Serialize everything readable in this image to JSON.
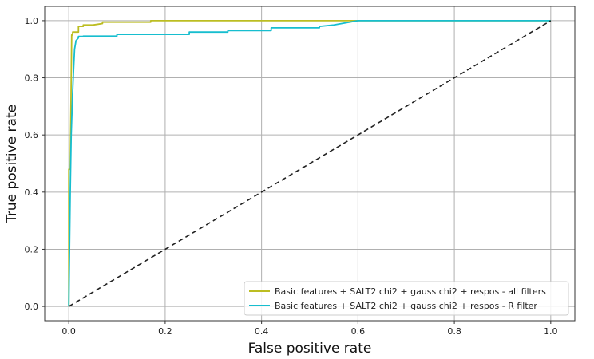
{
  "chart_data": {
    "type": "line",
    "xlabel": "False positive rate",
    "ylabel": "True positive rate",
    "xlim": [
      -0.05,
      1.05
    ],
    "ylim": [
      -0.05,
      1.05
    ],
    "xticks": [
      "0.0",
      "0.2",
      "0.4",
      "0.6",
      "0.8",
      "1.0"
    ],
    "yticks": [
      "0.0",
      "0.2",
      "0.4",
      "0.6",
      "0.8",
      "1.0"
    ],
    "grid": true,
    "legend_position": "lower-right",
    "series": [
      {
        "name": "Basic features + SALT2 chi2 + gauss chi2 + respos - all filters",
        "color": "#bcbd22",
        "x": [
          0.0,
          0.0,
          0.003,
          0.006,
          0.008,
          0.008,
          0.02,
          0.02,
          0.03,
          0.03,
          0.05,
          0.07,
          0.07,
          0.17,
          0.17,
          0.6,
          1.0
        ],
        "y": [
          0.0,
          0.48,
          0.48,
          0.95,
          0.95,
          0.96,
          0.96,
          0.98,
          0.98,
          0.985,
          0.985,
          0.99,
          0.995,
          0.995,
          1.0,
          1.0,
          1.0
        ]
      },
      {
        "name": "Basic features + SALT2 chi2 + gauss chi2 + respos - R filter",
        "color": "#17becf",
        "x": [
          0.0,
          0.003,
          0.005,
          0.008,
          0.01,
          0.012,
          0.015,
          0.02,
          0.02,
          0.03,
          0.03,
          0.1,
          0.1,
          0.25,
          0.25,
          0.33,
          0.33,
          0.42,
          0.42,
          0.52,
          0.52,
          0.55,
          0.6,
          1.0
        ],
        "y": [
          0.0,
          0.4,
          0.6,
          0.75,
          0.83,
          0.9,
          0.93,
          0.94,
          0.945,
          0.945,
          0.946,
          0.946,
          0.952,
          0.952,
          0.96,
          0.96,
          0.965,
          0.965,
          0.975,
          0.975,
          0.98,
          0.985,
          1.0,
          1.0
        ]
      },
      {
        "color": "#222222",
        "dashed": true,
        "x": [
          0.0,
          1.0
        ],
        "y": [
          0.0,
          1.0
        ]
      }
    ]
  }
}
